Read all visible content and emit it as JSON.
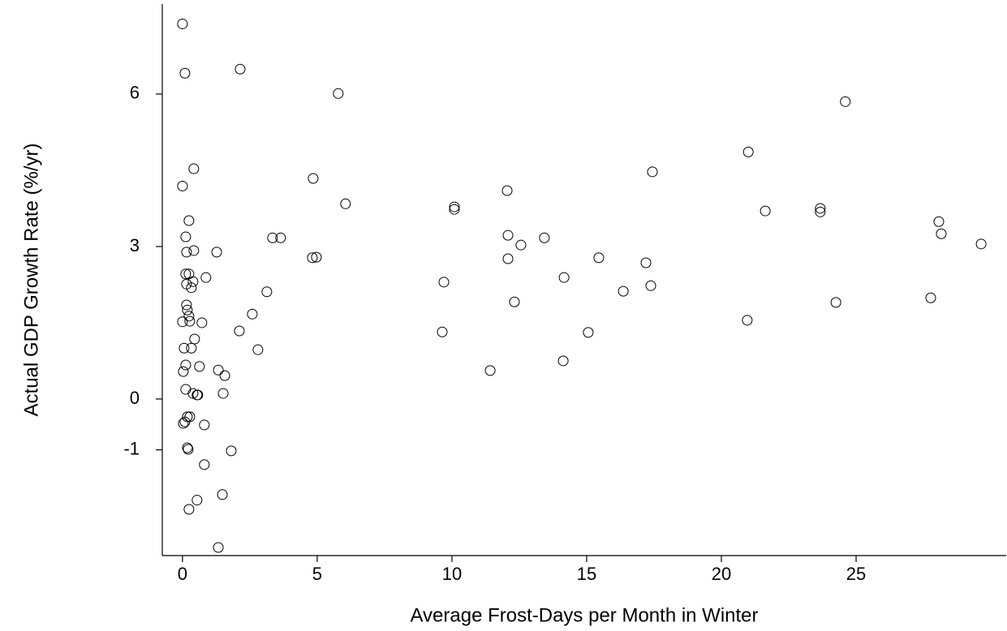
{
  "chart_data": {
    "type": "scatter",
    "x_label": "Average Frost-Days per Month in Winter",
    "y_label": "Actual GDP Growth Rate (%/yr)",
    "x": [
      0,
      0.09,
      2.14,
      5.78,
      24.6,
      21.0,
      0.42,
      17.44,
      4.85,
      0,
      12.05,
      6.05,
      10.09,
      10.09,
      23.67,
      23.67,
      21.63,
      0.24,
      28.07,
      28.16,
      0.12,
      3.34,
      3.64,
      12.08,
      13.43,
      12.56,
      29.64,
      0.42,
      0.15,
      1.27,
      4.82,
      4.97,
      12.08,
      15.45,
      17.2,
      0.12,
      0.24,
      0.87,
      14.16,
      0.39,
      0.15,
      9.7,
      0.33,
      17.38,
      3.13,
      16.36,
      12.32,
      24.25,
      27.77,
      0.15,
      0.18,
      2.59,
      0.24,
      0.27,
      0,
      0.72,
      20.96,
      2.11,
      9.64,
      15.06,
      0.45,
      0.06,
      0.33,
      2.8,
      14.13,
      0.12,
      0.63,
      0.03,
      1.33,
      11.42,
      1.57,
      0.12,
      0.39,
      0.54,
      0.57,
      1.51,
      0.18,
      0.27,
      0.03,
      0.09,
      0.81,
      0.18,
      0.21,
      1.81,
      0.81,
      1.48,
      0.54,
      0.24,
      1.33
    ],
    "series": [
      {
        "color": "#000000",
        "values": [
          7.38,
          6.41,
          6.49,
          6.01,
          5.85,
          4.86,
          4.53,
          4.47,
          4.34,
          4.19,
          4.1,
          3.84,
          3.78,
          3.73,
          3.75,
          3.68,
          3.7,
          3.51,
          3.49,
          3.25,
          3.19,
          3.17,
          3.17,
          3.22,
          3.17,
          3.03,
          3.05,
          2.92,
          2.89,
          2.89,
          2.78,
          2.79,
          2.76,
          2.78,
          2.68,
          2.46,
          2.46,
          2.39,
          2.39,
          2.31,
          2.26,
          2.3,
          2.19,
          2.23,
          2.11,
          2.12,
          1.91,
          1.9,
          1.99,
          1.85,
          1.75,
          1.67,
          1.63,
          1.53,
          1.52,
          1.5,
          1.55,
          1.34,
          1.32,
          1.31,
          1.18,
          1.0,
          1.0,
          0.97,
          0.75,
          0.67,
          0.64,
          0.54,
          0.57,
          0.56,
          0.46,
          0.19,
          0.11,
          0.08,
          0.08,
          0.11,
          -0.35,
          -0.35,
          -0.48,
          -0.45,
          -0.51,
          -0.96,
          -0.99,
          -1.02,
          -1.29,
          -1.88,
          -1.99,
          -2.17,
          -2.92
        ]
      }
    ],
    "xlim": [
      -0.75,
      30.57
    ],
    "ylim": [
      -3.08,
      7.77
    ],
    "xticks": [
      0,
      5,
      10,
      15,
      20,
      25
    ],
    "yticks": [
      -1,
      0,
      3,
      6
    ]
  }
}
